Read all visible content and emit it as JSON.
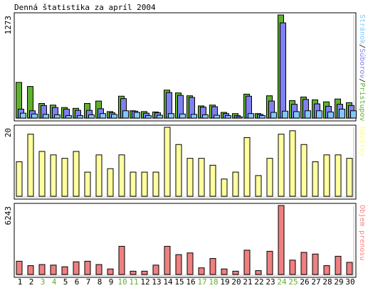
{
  "chart_data": [
    {
      "type": "bar",
      "title": "Denná štatistika za apríl 2004",
      "y_max_label": "1273",
      "ylim": [
        0,
        1273
      ],
      "categories": [
        "1",
        "2",
        "3",
        "4",
        "5",
        "6",
        "7",
        "8",
        "9",
        "10",
        "11",
        "12",
        "13",
        "14",
        "15",
        "16",
        "17",
        "18",
        "19",
        "20",
        "21",
        "22",
        "23",
        "24",
        "25",
        "26",
        "27",
        "28",
        "29",
        "30"
      ],
      "weekend_days": [
        "3",
        "4",
        "10",
        "11",
        "17",
        "18",
        "24",
        "25"
      ],
      "legend": [
        {
          "name": "Stránok",
          "color": "#80c8ff"
        },
        {
          "name": "Súborov",
          "color": "#8080f0"
        },
        {
          "name": "Prístupov",
          "color": "#60b030"
        }
      ],
      "legend_separator": "/",
      "series": [
        {
          "name": "Prístupov",
          "color": "#60b030",
          "values": [
            440,
            390,
            180,
            160,
            130,
            120,
            180,
            210,
            80,
            270,
            90,
            80,
            75,
            345,
            310,
            275,
            150,
            160,
            70,
            55,
            295,
            55,
            275,
            1273,
            215,
            260,
            225,
            200,
            235,
            190
          ]
        },
        {
          "name": "Súborov",
          "color": "#8080f0",
          "values": [
            110,
            90,
            155,
            130,
            110,
            95,
            95,
            115,
            65,
            240,
            85,
            60,
            65,
            315,
            280,
            255,
            135,
            140,
            55,
            30,
            270,
            45,
            210,
            1175,
            170,
            230,
            175,
            145,
            170,
            155
          ]
        },
        {
          "name": "Stránok",
          "color": "#80c8ff",
          "values": [
            60,
            50,
            45,
            40,
            30,
            30,
            40,
            55,
            45,
            90,
            70,
            30,
            35,
            55,
            50,
            45,
            40,
            35,
            30,
            15,
            55,
            30,
            70,
            85,
            80,
            90,
            90,
            75,
            110,
            90
          ]
        }
      ]
    },
    {
      "type": "bar",
      "y_max_label": "20",
      "ylim": [
        0,
        20
      ],
      "categories": [
        "1",
        "2",
        "3",
        "4",
        "5",
        "6",
        "7",
        "8",
        "9",
        "10",
        "11",
        "12",
        "13",
        "14",
        "15",
        "16",
        "17",
        "18",
        "19",
        "20",
        "21",
        "22",
        "23",
        "24",
        "25",
        "26",
        "27",
        "28",
        "29",
        "30"
      ],
      "legend": [
        {
          "name": "Návštev",
          "color": "#ffff80"
        }
      ],
      "series": [
        {
          "name": "Návštev",
          "color": "#ffffa0",
          "values": [
            10,
            18,
            13,
            12,
            11,
            13,
            7,
            12,
            8,
            12,
            7,
            7,
            7,
            20,
            15,
            11,
            11,
            9,
            5,
            7,
            17,
            6,
            11,
            18,
            19,
            15,
            10,
            12,
            12,
            11
          ]
        }
      ]
    },
    {
      "type": "bar",
      "y_max_label": "6243",
      "ylim": [
        0,
        6243
      ],
      "categories": [
        "1",
        "2",
        "3",
        "4",
        "5",
        "6",
        "7",
        "8",
        "9",
        "10",
        "11",
        "12",
        "13",
        "14",
        "15",
        "16",
        "17",
        "18",
        "19",
        "20",
        "21",
        "22",
        "23",
        "24",
        "25",
        "26",
        "27",
        "28",
        "29",
        "30"
      ],
      "legend": [
        {
          "name": "Objem prenosu",
          "color": "#ff8080"
        }
      ],
      "series": [
        {
          "name": "Objem prenosu",
          "color": "#f08080",
          "values": [
            1200,
            800,
            900,
            850,
            700,
            1150,
            1200,
            900,
            500,
            2550,
            300,
            300,
            850,
            2550,
            1800,
            1950,
            600,
            1450,
            500,
            300,
            2200,
            350,
            2100,
            6243,
            1300,
            2000,
            1850,
            800,
            1650,
            1100
          ]
        }
      ]
    }
  ]
}
